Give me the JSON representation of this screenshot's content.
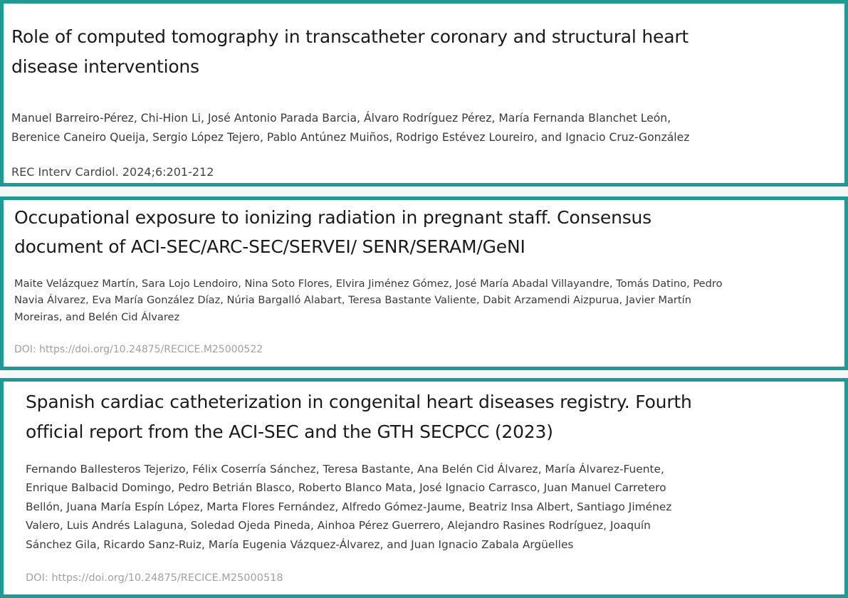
{
  "articles": [
    {
      "title_lines": [
        "Role of computed tomography in transcatheter coronary and structural heart",
        "disease interventions"
      ],
      "author_lines": [
        "Manuel Barreiro-Pérez, Chi-Hion Li, José Antonio Parada Barcia, Álvaro Rodríguez Pérez, María Fernanda Blanchet León,",
        "Berenice Caneiro Queija, Sergio López Tejero, Pablo Antúnez Muiños, Rodrigo Estévez Loureiro, and Ignacio Cruz-González"
      ],
      "citation": "REC Interv Cardiol. 2024;6:201-212"
    },
    {
      "title_lines": [
        "Occupational exposure to ionizing radiation in pregnant staff. Consensus",
        "document of ACI-SEC/ARC-SEC/SERVEI/ SENR/SERAM/GeNI"
      ],
      "author_lines": [
        "Maite Velázquez Martín, Sara Lojo Lendoiro, Nina Soto Flores, Elvira Jiménez Gómez, José María Abadal Villayandre, Tomás Datino, Pedro",
        "Navia Álvarez, Eva María González Díaz, Núria Bargalló Alabart, Teresa Bastante Valiente, Dabit Arzamendi Aizpurua, Javier Martín",
        "Moreiras, and Belén Cid Álvarez"
      ],
      "citation": "DOI: https://doi.org/10.24875/RECICE.M25000522"
    },
    {
      "title_lines": [
        "Spanish cardiac catheterization in congenital heart diseases registry. Fourth",
        "official report from the ACI-SEC and the GTH SECPCC (2023)"
      ],
      "author_lines": [
        "Fernando Ballesteros Tejerizo, Félix Coserría Sánchez, Teresa Bastante, Ana Belén Cid Álvarez, María Álvarez-Fuente,",
        "Enrique Balbacid Domingo, Pedro Betrián Blasco, Roberto Blanco Mata, José Ignacio Carrasco, Juan Manuel Carretero",
        "Bellón, Juana María Espín López, Marta Flores Fernández, Alfredo Gómez-Jaume, Beatriz Insa Albert, Santiago Jiménez",
        "Valero, Luis Andrés Lalaguna, Soledad Ojeda Pineda, Ainhoa Pérez Guerrero, Alejandro Rasines Rodríguez, Joaquín",
        "Sánchez Gila, Ricardo Sanz-Ruiz, María Eugenia Vázquez-Álvarez, and Juan Ignacio Zabala Argüelles"
      ],
      "citation": "DOI: https://doi.org/10.24875/RECICE.M25000518"
    }
  ],
  "colors": {
    "border": "#1f9a94"
  }
}
